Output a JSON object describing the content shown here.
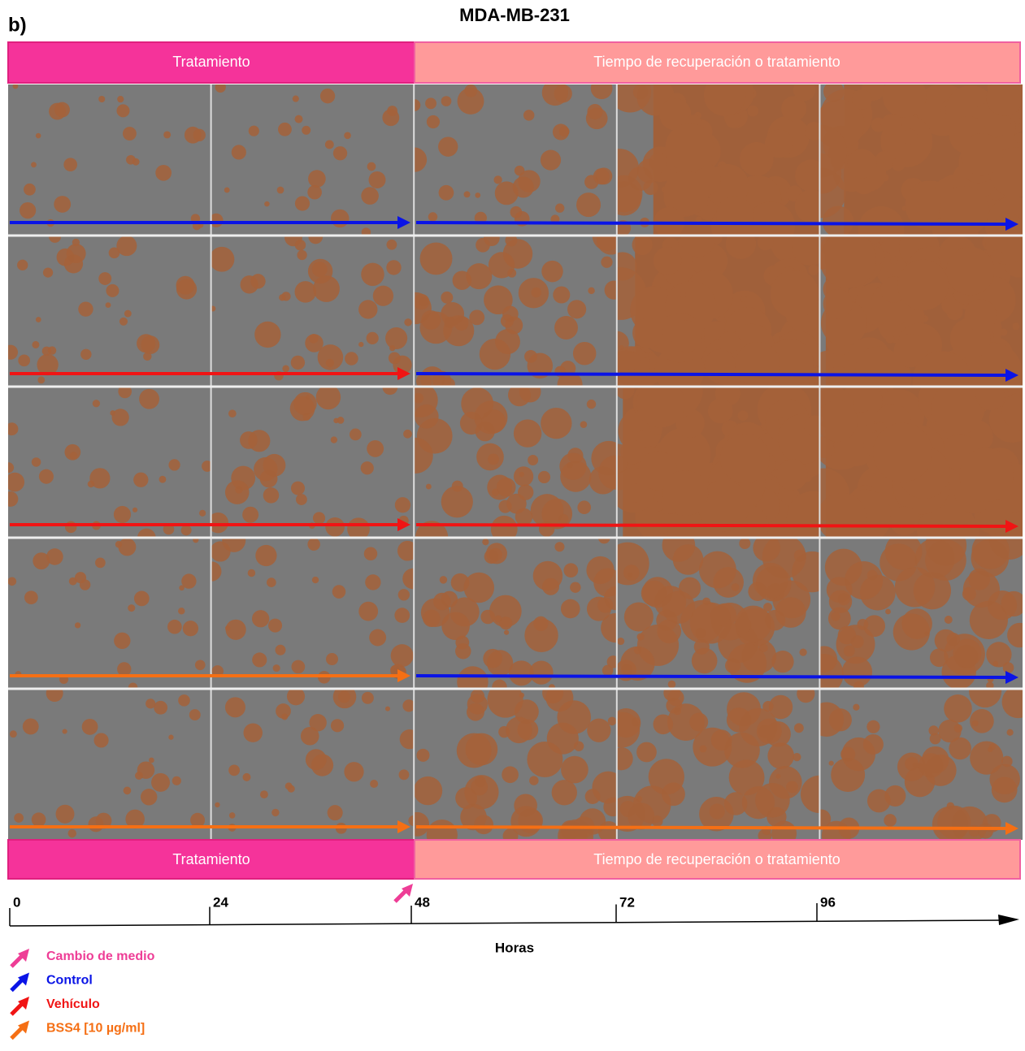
{
  "panel_label": "b)",
  "title": "MDA-MB-231",
  "top_banner": {
    "left": "Tratamiento",
    "right": "Tiempo de recuperación o tratamiento"
  },
  "bottom_banner": {
    "left": "Tratamiento",
    "right": "Tiempo de recuperación o tratamiento"
  },
  "timeline": {
    "ticks": [
      0,
      24,
      48,
      72,
      96
    ],
    "label": "Horas"
  },
  "legend": [
    {
      "label": "Cambio de medio",
      "color": "#ee3d96"
    },
    {
      "label": "Control",
      "color": "#0a14e6"
    },
    {
      "label": "Vehículo",
      "color": "#f01414"
    },
    {
      "label": "BSS4 [10 µg/ml]",
      "color": "#f56f14"
    }
  ]
}
